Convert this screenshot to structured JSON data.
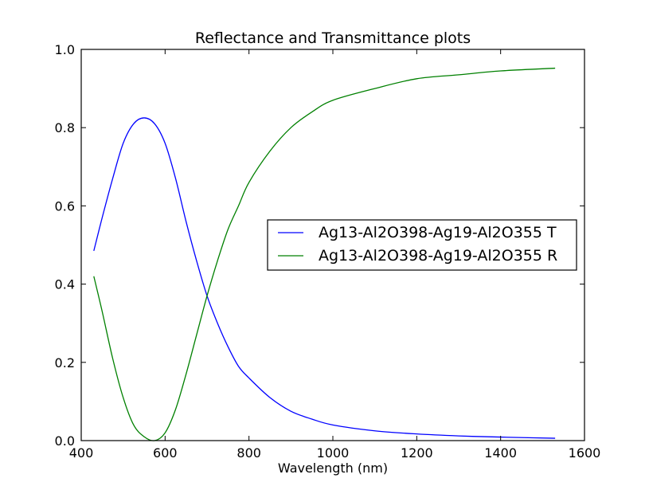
{
  "chart_data": {
    "type": "line",
    "title": "Reflectance and Transmittance plots",
    "xlabel": "Wavelength (nm)",
    "ylabel": "",
    "xlim": [
      400,
      1600
    ],
    "ylim": [
      0.0,
      1.0
    ],
    "xticks": [
      400,
      600,
      800,
      1000,
      1200,
      1400,
      1600
    ],
    "xtick_labels": [
      "400",
      "600",
      "800",
      "1000",
      "1200",
      "1400",
      "1600"
    ],
    "yticks": [
      0.0,
      0.2,
      0.4,
      0.6,
      0.8,
      1.0
    ],
    "ytick_labels": [
      "0.0",
      "0.2",
      "0.4",
      "0.6",
      "0.8",
      "1.0"
    ],
    "grid": false,
    "legend_position": "center-right",
    "series": [
      {
        "name": "Ag13-Al2O398-Ag19-Al2O355 T",
        "color": "#0000ff",
        "x": [
          430,
          450,
          475,
          500,
          525,
          550,
          575,
          600,
          625,
          650,
          675,
          700,
          725,
          750,
          775,
          800,
          850,
          900,
          950,
          1000,
          1100,
          1200,
          1300,
          1400,
          1530
        ],
        "y": [
          0.485,
          0.57,
          0.67,
          0.76,
          0.81,
          0.825,
          0.81,
          0.76,
          0.67,
          0.56,
          0.46,
          0.37,
          0.3,
          0.24,
          0.19,
          0.16,
          0.11,
          0.075,
          0.055,
          0.04,
          0.025,
          0.017,
          0.012,
          0.009,
          0.006
        ]
      },
      {
        "name": "Ag13-Al2O398-Ag19-Al2O355 R",
        "color": "#008000",
        "x": [
          430,
          450,
          475,
          500,
          525,
          550,
          575,
          600,
          625,
          650,
          675,
          700,
          725,
          750,
          775,
          800,
          850,
          900,
          950,
          1000,
          1100,
          1200,
          1300,
          1400,
          1530
        ],
        "y": [
          0.42,
          0.33,
          0.21,
          0.11,
          0.04,
          0.01,
          0.0,
          0.02,
          0.08,
          0.17,
          0.27,
          0.37,
          0.46,
          0.54,
          0.6,
          0.66,
          0.74,
          0.8,
          0.84,
          0.87,
          0.9,
          0.925,
          0.935,
          0.945,
          0.952
        ]
      }
    ]
  }
}
